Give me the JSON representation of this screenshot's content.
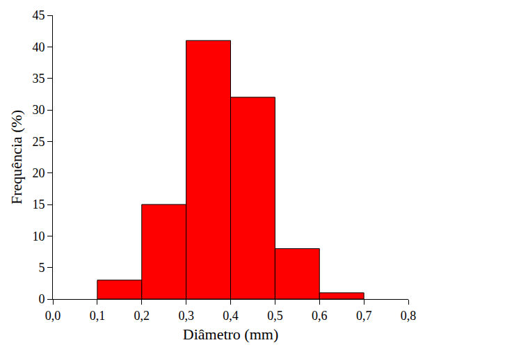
{
  "chart_data": {
    "type": "histogram",
    "x_label": "Diâmetro (mm)",
    "y_label": "Frequência (%)",
    "bins": [
      0.1,
      0.2,
      0.3,
      0.4,
      0.5,
      0.6,
      0.7
    ],
    "values": [
      3,
      15,
      41,
      32,
      8,
      1
    ],
    "color": "#ff0000",
    "xlim": [
      0,
      0.8
    ],
    "xticks": [
      {
        "value": 0,
        "label": "0,0"
      },
      {
        "value": 0.1,
        "label": "0,1"
      },
      {
        "value": 0.2,
        "label": "0,2"
      },
      {
        "value": 0.3,
        "label": "0,3"
      },
      {
        "value": 0.4,
        "label": "0,4"
      },
      {
        "value": 0.5,
        "label": "0,5"
      },
      {
        "value": 0.6,
        "label": "0,6"
      },
      {
        "value": 0.7,
        "label": "0,7"
      },
      {
        "value": 0.8,
        "label": "0,8"
      }
    ],
    "ylim": [
      0,
      45
    ],
    "yticks": [
      0,
      5,
      10,
      15,
      20,
      25,
      30,
      35,
      40,
      45
    ],
    "grid": false
  }
}
